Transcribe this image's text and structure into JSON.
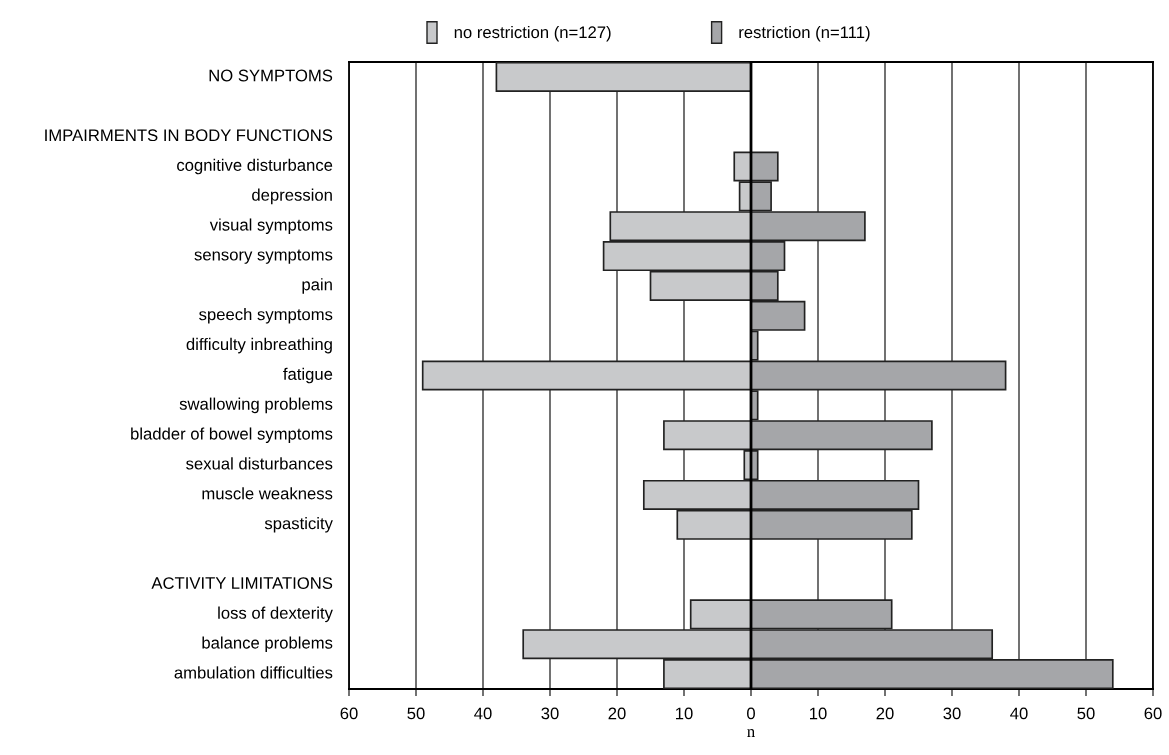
{
  "chart_data": {
    "type": "bar",
    "orientation": "horizontal",
    "xlabel": "n",
    "categories": [
      "NO SYMPTOMS",
      null,
      "IMPAIRMENTS IN BODY FUNCTIONS",
      "cognitive disturbance",
      "depression",
      "visual symptoms",
      "sensory symptoms",
      "pain",
      "speech symptoms",
      "difficulty inbreathing",
      "fatigue",
      "swallowing problems",
      "bladder of bowel symptoms",
      "sexual disturbances",
      "muscle weakness",
      "spasticity",
      null,
      "ACTIVITY LIMITATIONS",
      "loss of dexterity",
      "balance problems",
      "ambulation difficulties"
    ],
    "series": [
      {
        "name": "no restriction (n=127)",
        "color": "#c8c9cb",
        "values": [
          -38,
          null,
          null,
          -2.5,
          -1.7,
          -21,
          -22,
          -15,
          null,
          null,
          -49,
          null,
          -13,
          -1,
          -16,
          -11,
          null,
          null,
          -9,
          -34,
          -13
        ]
      },
      {
        "name": "restriction (n=111)",
        "color": "#a5a6a9",
        "values": [
          null,
          null,
          null,
          4,
          3,
          17,
          5,
          4,
          8,
          1,
          38,
          1,
          27,
          1,
          25,
          24,
          null,
          null,
          21,
          36,
          54
        ]
      }
    ],
    "xlim": [
      -60,
      60
    ],
    "xticks": [
      {
        "value": -60,
        "label": "60"
      },
      {
        "value": -50,
        "label": "50"
      },
      {
        "value": -40,
        "label": "40"
      },
      {
        "value": -30,
        "label": "30"
      },
      {
        "value": -20,
        "label": "20"
      },
      {
        "value": -10,
        "label": "10"
      },
      0,
      10,
      20,
      30,
      40,
      50,
      60
    ],
    "ref_lines": [
      {
        "axis": "x",
        "value": 0,
        "color": "#000000"
      }
    ],
    "grid": "x",
    "legend": "top",
    "stacked": true
  }
}
